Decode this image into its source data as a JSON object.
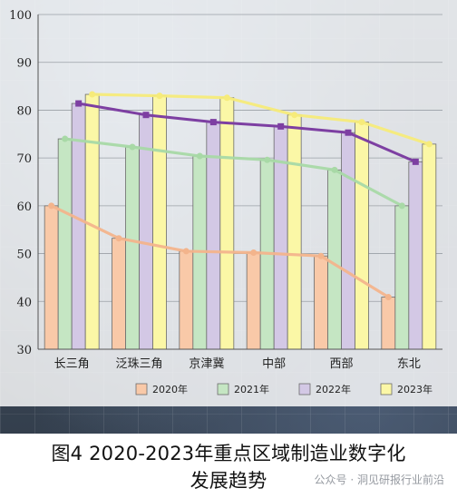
{
  "caption": {
    "line1": "图4 2020-2023年重点区域制造业数字化",
    "line2": "发展趋势"
  },
  "watermark": "公众号 · 洞见研报行业前沿",
  "chart_data": {
    "type": "bar",
    "overlay": "line",
    "categories": [
      "长三角",
      "泛珠三角",
      "京津冀",
      "中部",
      "西部",
      "东北"
    ],
    "series": [
      {
        "name": "2020年",
        "color": "#f9c9a8",
        "line_color": "#f3b48c",
        "values": [
          60.0,
          53.2,
          50.5,
          50.2,
          49.5,
          40.9
        ]
      },
      {
        "name": "2021年",
        "color": "#c5e6c3",
        "line_color": "#a8d9a6",
        "values": [
          74.0,
          72.3,
          70.4,
          69.6,
          67.5,
          60.0
        ]
      },
      {
        "name": "2022年",
        "color": "#d3c8e5",
        "line_color": "#7d3fa2",
        "values": [
          81.4,
          79.0,
          77.5,
          76.6,
          75.3,
          69.2
        ]
      },
      {
        "name": "2023年",
        "color": "#fbf7a6",
        "line_color": "#f6eb7a",
        "values": [
          83.3,
          83.0,
          82.6,
          79.0,
          77.5,
          72.9
        ]
      }
    ],
    "y_ticks": [
      30,
      40,
      50,
      60,
      70,
      80,
      90,
      100
    ],
    "ylim": [
      30,
      100
    ],
    "legend_position": "bottom",
    "grid": true
  }
}
